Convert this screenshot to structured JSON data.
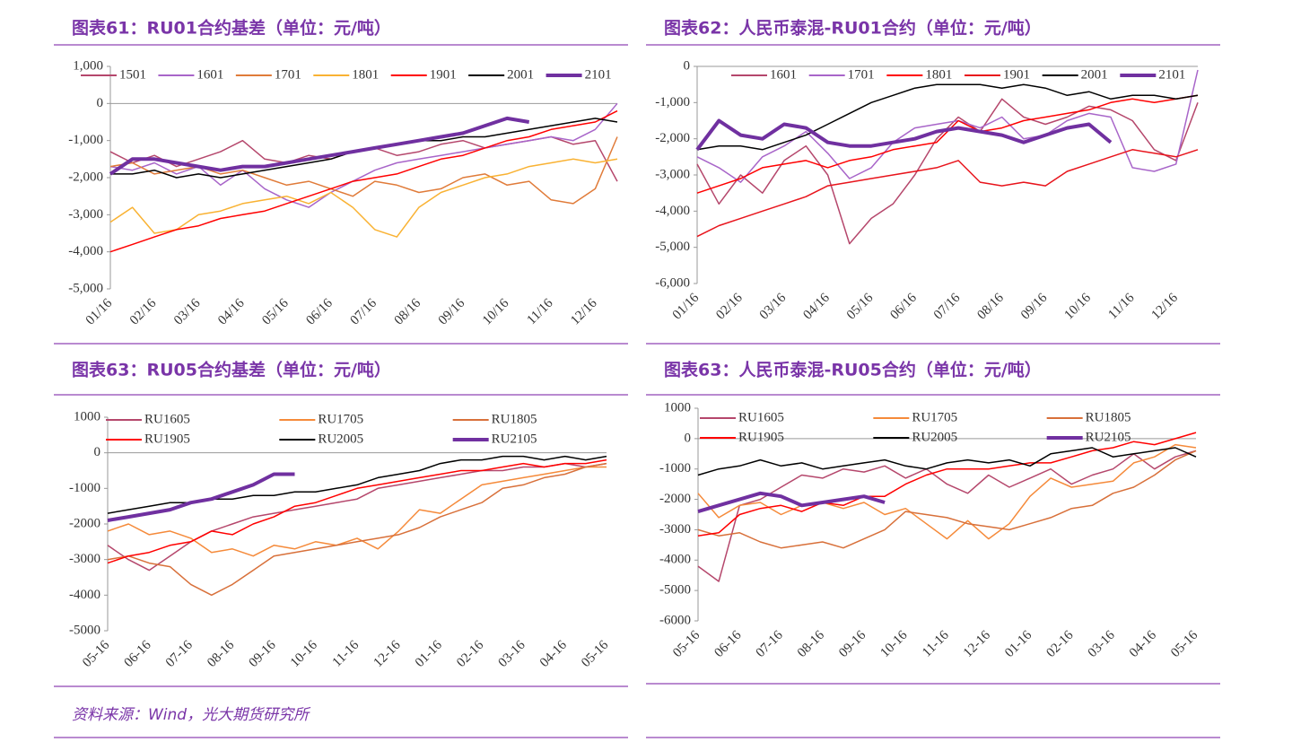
{
  "chart_data": [
    {
      "type": "line",
      "title": "图表61：RU01合约基差（单位：元/吨）",
      "categories": [
        "01/16",
        null,
        "02/16",
        null,
        "03/16",
        null,
        "04/16",
        null,
        "05/16",
        null,
        "06/16",
        null,
        "07/16",
        null,
        "08/16",
        null,
        "09/16",
        null,
        "10/16",
        null,
        "11/16",
        null,
        "12/16",
        null
      ],
      "ylim": [
        -5000,
        1000
      ],
      "yticks": [
        {
          "value": 1000,
          "label": "1,000"
        },
        0,
        {
          "value": -1000,
          "label": "-1,000"
        },
        {
          "value": -2000,
          "label": "-2,000"
        },
        {
          "value": -3000,
          "label": "-3,000"
        },
        {
          "value": -4000,
          "label": "-4,000"
        },
        {
          "value": -5000,
          "label": "-5,000"
        }
      ],
      "legend": "top",
      "series": [
        {
          "name": "1501",
          "color": "#b5476c",
          "values": [
            -1300,
            -1600,
            -1400,
            -1700,
            -1500,
            -1300,
            -1000,
            -1500,
            -1600,
            -1400,
            -1500,
            -1300,
            -1200,
            -1400,
            -1300,
            -1100,
            -1000,
            -1200,
            -1100,
            -1000,
            -900,
            -1100,
            -1000,
            -2100
          ]
        },
        {
          "name": "1601",
          "color": "#a865c9",
          "values": [
            -1700,
            -1800,
            -1600,
            -1900,
            -1700,
            -2200,
            -1800,
            -2300,
            -2600,
            -2800,
            -2400,
            -2100,
            -1800,
            -1600,
            -1500,
            -1400,
            -1300,
            -1200,
            -1100,
            -1000,
            -900,
            -1000,
            -700,
            0
          ]
        },
        {
          "name": "1701",
          "color": "#e07b39",
          "values": [
            -1700,
            -1600,
            -1900,
            -1800,
            -1700,
            -1900,
            -1800,
            -2000,
            -2200,
            -2100,
            -2300,
            -2500,
            -2100,
            -2200,
            -2400,
            -2300,
            -2000,
            -1900,
            -2200,
            -2100,
            -2600,
            -2700,
            -2300,
            -900
          ]
        },
        {
          "name": "1801",
          "color": "#f9b233",
          "values": [
            -3200,
            -2800,
            -3500,
            -3400,
            -3000,
            -2900,
            -2700,
            -2600,
            -2500,
            -2700,
            -2400,
            -2800,
            -3400,
            -3600,
            -2800,
            -2400,
            -2200,
            -2000,
            -1900,
            -1700,
            -1600,
            -1500,
            -1600,
            -1500
          ]
        },
        {
          "name": "1901",
          "color": "#ff0000",
          "values": [
            -4000,
            -3800,
            -3600,
            -3400,
            -3300,
            -3100,
            -3000,
            -2900,
            -2700,
            -2500,
            -2300,
            -2100,
            -2000,
            -1900,
            -1700,
            -1500,
            -1400,
            -1200,
            -1000,
            -900,
            -700,
            -600,
            -500,
            -200
          ]
        },
        {
          "name": "2001",
          "color": "#000000",
          "values": [
            -1900,
            -1900,
            -1800,
            -2000,
            -1900,
            -2000,
            -1900,
            -1800,
            -1700,
            -1600,
            -1500,
            -1300,
            -1200,
            -1100,
            -1000,
            -1000,
            -900,
            -900,
            -800,
            -700,
            -600,
            -500,
            -400,
            -500
          ]
        },
        {
          "name": "2101",
          "color": "#7030a0",
          "width": 4,
          "values": [
            -1900,
            -1500,
            -1500,
            -1600,
            -1700,
            -1800,
            -1700,
            -1700,
            -1600,
            -1500,
            -1400,
            -1300,
            -1200,
            -1100,
            -1000,
            -900,
            -800,
            -600,
            -400,
            -500,
            null,
            null,
            null,
            null
          ]
        }
      ]
    },
    {
      "type": "line",
      "title": "图表62：人民币泰混-RU01合约（单位：元/吨）",
      "categories": [
        "01/16",
        null,
        "02/16",
        null,
        "03/16",
        null,
        "04/16",
        null,
        "05/16",
        null,
        "06/16",
        null,
        "07/16",
        null,
        "08/16",
        null,
        "09/16",
        null,
        "10/16",
        null,
        "11/16",
        null,
        "12/16",
        null
      ],
      "ylim": [
        -6000,
        0
      ],
      "yticks": [
        0,
        {
          "value": -1000,
          "label": "-1,000"
        },
        {
          "value": -2000,
          "label": "-2,000"
        },
        {
          "value": -3000,
          "label": "-3,000"
        },
        {
          "value": -4000,
          "label": "-4,000"
        },
        {
          "value": -5000,
          "label": "-5,000"
        },
        {
          "value": -6000,
          "label": "-6,000"
        }
      ],
      "legend": "top",
      "series": [
        {
          "name": "1601",
          "color": "#b5476c",
          "values": [
            -2700,
            -3800,
            -3000,
            -3500,
            -2600,
            -2200,
            -3000,
            -4900,
            -4200,
            -3800,
            -3000,
            -2000,
            -1400,
            -1800,
            -900,
            -1400,
            -1600,
            -1400,
            -1100,
            -1200,
            -1500,
            -2300,
            -2600,
            -1000
          ]
        },
        {
          "name": "1701",
          "color": "#a865c9",
          "values": [
            -2500,
            -2800,
            -3200,
            -2500,
            -2200,
            -1800,
            -2400,
            -3100,
            -2800,
            -2100,
            -1700,
            -1600,
            -1500,
            -1700,
            -1400,
            -2000,
            -1900,
            -1500,
            -1300,
            -1400,
            -2800,
            -2900,
            -2700,
            -100
          ]
        },
        {
          "name": "1801",
          "color": "#ff0000",
          "values": [
            -3500,
            -3300,
            -3100,
            -2800,
            -2700,
            -2600,
            -2800,
            -2600,
            -2500,
            -2300,
            -2200,
            -2100,
            -1500,
            -1800,
            -1700,
            -1500,
            -1400,
            -1300,
            -1200,
            -1000,
            -900,
            -1000,
            -900,
            -800
          ]
        },
        {
          "name": "1901",
          "color": "#e8141c",
          "values": [
            -4700,
            -4400,
            -4200,
            -4000,
            -3800,
            -3600,
            -3300,
            -3200,
            -3100,
            -3000,
            -2900,
            -2800,
            -2600,
            -3200,
            -3300,
            -3200,
            -3300,
            -2900,
            -2700,
            -2500,
            -2300,
            -2400,
            -2500,
            -2300
          ]
        },
        {
          "name": "2001",
          "color": "#000000",
          "values": [
            -2300,
            -2200,
            -2200,
            -2300,
            -2100,
            -1900,
            -1600,
            -1300,
            -1000,
            -800,
            -600,
            -500,
            -500,
            -500,
            -600,
            -500,
            -600,
            -800,
            -700,
            -900,
            -800,
            -800,
            -900,
            -800
          ]
        },
        {
          "name": "2101",
          "color": "#7030a0",
          "width": 4,
          "values": [
            -2300,
            -1500,
            -1900,
            -2000,
            -1600,
            -1700,
            -2100,
            -2200,
            -2200,
            -2100,
            -2000,
            -1800,
            -1700,
            -1800,
            -1900,
            -2100,
            -1900,
            -1700,
            -1600,
            -2100,
            null,
            null,
            null,
            null
          ]
        }
      ]
    },
    {
      "type": "line",
      "title": "图表63：RU05合约基差（单位：元/吨）",
      "categories": [
        "05-16",
        null,
        "06-16",
        null,
        "07-16",
        null,
        "08-16",
        null,
        "09-16",
        null,
        "10-16",
        null,
        "11-16",
        null,
        "12-16",
        null,
        "01-16",
        null,
        "02-16",
        null,
        "03-16",
        null,
        "04-16",
        null,
        "05-16"
      ],
      "ylim": [
        -5000,
        1000
      ],
      "yticks": [
        1000,
        0,
        -1000,
        -2000,
        -3000,
        -4000,
        -5000
      ],
      "legend": "top",
      "series": [
        {
          "name": "RU1605",
          "color": "#b5476c",
          "values": [
            -2600,
            -3000,
            -3300,
            -2900,
            -2500,
            -2200,
            -2000,
            -1800,
            -1700,
            -1600,
            -1500,
            -1400,
            -1300,
            -1000,
            -900,
            -800,
            -700,
            -600,
            -500,
            -500,
            -400,
            -400,
            -300,
            -400,
            -300
          ]
        },
        {
          "name": "RU1705",
          "color": "#f58a3a",
          "values": [
            -2200,
            -2000,
            -2300,
            -2200,
            -2400,
            -2800,
            -2700,
            -2900,
            -2600,
            -2700,
            -2500,
            -2600,
            -2400,
            -2700,
            -2200,
            -1600,
            -1700,
            -1300,
            -900,
            -800,
            -700,
            -600,
            -500,
            -400,
            -400
          ]
        },
        {
          "name": "RU1805",
          "color": "#d8703a",
          "values": [
            -3000,
            -2900,
            -3100,
            -3200,
            -3700,
            -4000,
            -3700,
            -3300,
            -2900,
            -2800,
            -2700,
            -2600,
            -2500,
            -2400,
            -2300,
            -2100,
            -1800,
            -1600,
            -1400,
            -1000,
            -900,
            -700,
            -600,
            -400,
            -300
          ]
        },
        {
          "name": "RU1905",
          "color": "#ff0000",
          "values": [
            -3100,
            -2900,
            -2800,
            -2600,
            -2500,
            -2200,
            -2300,
            -2000,
            -1800,
            -1500,
            -1400,
            -1200,
            -1000,
            -900,
            -800,
            -700,
            -600,
            -500,
            -500,
            -400,
            -300,
            -400,
            -300,
            -300,
            -200
          ]
        },
        {
          "name": "RU2005",
          "color": "#000000",
          "values": [
            -1700,
            -1600,
            -1500,
            -1400,
            -1400,
            -1300,
            -1300,
            -1200,
            -1200,
            -1100,
            -1100,
            -1000,
            -900,
            -700,
            -600,
            -500,
            -300,
            -200,
            -200,
            -100,
            -100,
            -200,
            -100,
            -200,
            -100
          ]
        },
        {
          "name": "RU2105",
          "color": "#7030a0",
          "width": 4,
          "values": [
            -1900,
            -1800,
            -1700,
            -1600,
            -1400,
            -1300,
            -1100,
            -900,
            -600,
            -600,
            null,
            null,
            null,
            null,
            null,
            null,
            null,
            null,
            null,
            null,
            null,
            null,
            null,
            null,
            null
          ]
        }
      ]
    },
    {
      "type": "line",
      "title": "图表63：人民币泰混-RU05合约（单位：元/吨）",
      "categories": [
        "05-16",
        null,
        "06-16",
        null,
        "07-16",
        null,
        "08-16",
        null,
        "09-16",
        null,
        "10-16",
        null,
        "11-16",
        null,
        "12-16",
        null,
        "01-16",
        null,
        "02-16",
        null,
        "03-16",
        null,
        "04-16",
        null,
        "05-16"
      ],
      "ylim": [
        -6000,
        1000
      ],
      "yticks": [
        1000,
        0,
        -1000,
        -2000,
        -3000,
        -4000,
        -5000,
        -6000
      ],
      "legend": "top",
      "series": [
        {
          "name": "RU1605",
          "color": "#b5476c",
          "values": [
            -4200,
            -4700,
            -2200,
            -2000,
            -1600,
            -1200,
            -1300,
            -1000,
            -1100,
            -900,
            -1300,
            -1000,
            -1500,
            -1800,
            -1200,
            -1600,
            -1300,
            -1000,
            -1500,
            -1200,
            -1000,
            -500,
            -1000,
            -600,
            -400
          ]
        },
        {
          "name": "RU1705",
          "color": "#f58a3a",
          "values": [
            -1800,
            -2600,
            -2200,
            -2100,
            -2500,
            -2200,
            -2100,
            -2300,
            -2100,
            -2500,
            -2300,
            -2800,
            -3300,
            -2700,
            -3300,
            -2800,
            -1900,
            -1300,
            -1600,
            -1500,
            -1400,
            -800,
            -600,
            -200,
            -300
          ]
        },
        {
          "name": "RU1805",
          "color": "#d8703a",
          "values": [
            -3000,
            -3200,
            -3100,
            -3400,
            -3600,
            -3500,
            -3400,
            -3600,
            -3300,
            -3000,
            -2400,
            -2500,
            -2600,
            -2800,
            -2900,
            -3000,
            -2800,
            -2600,
            -2300,
            -2200,
            -1800,
            -1600,
            -1200,
            -700,
            -400
          ]
        },
        {
          "name": "RU1905",
          "color": "#ff0000",
          "values": [
            -3200,
            -3100,
            -2500,
            -2300,
            -2200,
            -2400,
            -2100,
            -2200,
            -1900,
            -1900,
            -1500,
            -1200,
            -1000,
            -1000,
            -1000,
            -900,
            -800,
            -800,
            -600,
            -400,
            -300,
            -100,
            -200,
            0,
            200
          ]
        },
        {
          "name": "RU2005",
          "color": "#000000",
          "values": [
            -1200,
            -1000,
            -900,
            -700,
            -900,
            -800,
            -1000,
            -900,
            -800,
            -700,
            -900,
            -1000,
            -800,
            -700,
            -800,
            -700,
            -900,
            -500,
            -400,
            -300,
            -600,
            -500,
            -400,
            -300,
            -600
          ]
        },
        {
          "name": "RU2105",
          "color": "#7030a0",
          "width": 4,
          "values": [
            -2400,
            -2200,
            -2000,
            -1800,
            -1900,
            -2200,
            -2100,
            -2000,
            -1900,
            -2100,
            null,
            null,
            null,
            null,
            null,
            null,
            null,
            null,
            null,
            null,
            null,
            null,
            null,
            null,
            null
          ]
        }
      ]
    }
  ],
  "source": "资料来源：Wind，光大期货研究所"
}
